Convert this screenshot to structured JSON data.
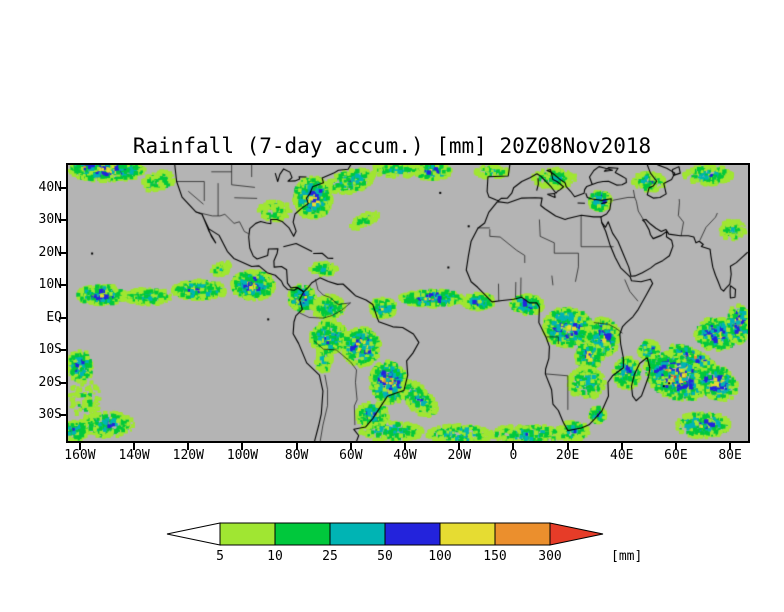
{
  "title": "Rainfall (7-day accum.) [mm] 20Z08Nov2018",
  "map": {
    "background_color": "#b4b4b4",
    "lat_ticks": [
      {
        "label": "40N",
        "value": 40
      },
      {
        "label": "30N",
        "value": 30
      },
      {
        "label": "20N",
        "value": 20
      },
      {
        "label": "10N",
        "value": 10
      },
      {
        "label": "EQ",
        "value": 0
      },
      {
        "label": "10S",
        "value": -10
      },
      {
        "label": "20S",
        "value": -20
      },
      {
        "label": "30S",
        "value": -30
      }
    ],
    "lon_ticks": [
      {
        "label": "160W",
        "value": -160
      },
      {
        "label": "140W",
        "value": -140
      },
      {
        "label": "120W",
        "value": -120
      },
      {
        "label": "100W",
        "value": -100
      },
      {
        "label": "80W",
        "value": -80
      },
      {
        "label": "60W",
        "value": -60
      },
      {
        "label": "40W",
        "value": -40
      },
      {
        "label": "20W",
        "value": -20
      },
      {
        "label": "0",
        "value": 0
      },
      {
        "label": "20E",
        "value": 20
      },
      {
        "label": "40E",
        "value": 40
      },
      {
        "label": "60E",
        "value": 60
      },
      {
        "label": "80E",
        "value": 80
      }
    ]
  },
  "legend": {
    "unit": "[mm]",
    "thresholds": [
      "5",
      "10",
      "25",
      "50",
      "100",
      "150",
      "300"
    ],
    "palette": [
      "#ffffff",
      "#a0e632",
      "#00c83c",
      "#00b4b4",
      "#2323dc",
      "#e6dc32",
      "#eb8f2d",
      "#e63c28"
    ]
  },
  "chart_data": {
    "type": "heatmap",
    "title": "Rainfall (7-day accum.) [mm] 20Z08Nov2018",
    "variable": "7-day accumulated rainfall",
    "unit": "mm",
    "valid_time": "20Z08Nov2018",
    "lon_range": [
      -164,
      86
    ],
    "lat_range": [
      -38,
      47
    ],
    "color_levels": [
      5,
      10,
      25,
      50,
      100,
      150,
      300
    ],
    "rainfall_regions_format": "[lon_center, lat_center, rx_deg, ry_deg, rot_deg, max_intensity_level_1to7, points]",
    "rainfall_regions": [
      [
        -150,
        45.5,
        14,
        3.5,
        0,
        6,
        450
      ],
      [
        -158,
        46.5,
        5,
        2,
        0,
        7,
        150
      ],
      [
        -131,
        42,
        6,
        3,
        10,
        3,
        140
      ],
      [
        -152,
        7,
        9,
        3,
        0,
        6,
        380
      ],
      [
        -135,
        6.5,
        9,
        2.5,
        0,
        4,
        240
      ],
      [
        -116,
        8.5,
        10,
        3,
        0,
        5,
        300
      ],
      [
        -96,
        10,
        8,
        4.5,
        0,
        6,
        480
      ],
      [
        -78,
        6,
        5,
        4,
        0,
        6,
        300
      ],
      [
        -108,
        15,
        4,
        2,
        20,
        3,
        80
      ],
      [
        -74,
        37,
        7,
        6.5,
        0,
        6,
        550
      ],
      [
        -88,
        33,
        6,
        3,
        0,
        3,
        150
      ],
      [
        -60,
        42,
        9,
        3.5,
        10,
        4,
        240
      ],
      [
        -30,
        45,
        7,
        2.5,
        0,
        5,
        200
      ],
      [
        -43,
        45.5,
        10,
        2.2,
        0,
        3,
        170
      ],
      [
        -55,
        30,
        6,
        2,
        20,
        2,
        90
      ],
      [
        -30,
        6,
        12,
        2.5,
        0,
        6,
        430
      ],
      [
        -13,
        5,
        6,
        2.5,
        0,
        5,
        200
      ],
      [
        -48,
        3,
        5,
        3,
        0,
        5,
        200
      ],
      [
        -68,
        3,
        6,
        4,
        0,
        4,
        240
      ],
      [
        -68,
        -6,
        7,
        5,
        0,
        5,
        380
      ],
      [
        -56,
        -9,
        7,
        6,
        0,
        6,
        430
      ],
      [
        -46,
        -20,
        7,
        6.5,
        -20,
        7,
        560
      ],
      [
        -52,
        -30,
        6,
        4,
        0,
        5,
        280
      ],
      [
        -70,
        -13,
        3,
        4,
        0,
        3,
        110
      ],
      [
        -35,
        -25,
        8,
        4,
        -35,
        4,
        240
      ],
      [
        -45,
        -35,
        12,
        3,
        0,
        4,
        240
      ],
      [
        -20,
        -36,
        12,
        3,
        0,
        4,
        240
      ],
      [
        5,
        -36,
        14,
        3,
        0,
        4,
        270
      ],
      [
        -150,
        -33,
        10,
        4,
        0,
        4,
        240
      ],
      [
        -160,
        -15,
        5,
        5,
        0,
        5,
        190
      ],
      [
        -158,
        -25,
        6,
        6,
        0,
        2,
        110
      ],
      [
        -162,
        -35,
        5,
        3,
        0,
        5,
        140
      ],
      [
        20,
        -3,
        9,
        6,
        0,
        6,
        600
      ],
      [
        5,
        4,
        6,
        3,
        0,
        5,
        240
      ],
      [
        33,
        -6,
        6,
        6,
        0,
        6,
        380
      ],
      [
        28,
        -12,
        5,
        4,
        0,
        6,
        280
      ],
      [
        27,
        -20,
        7,
        5,
        0,
        4,
        280
      ],
      [
        31,
        -30,
        3,
        2.5,
        0,
        5,
        120
      ],
      [
        22,
        -35,
        6,
        3,
        0,
        4,
        170
      ],
      [
        42,
        -17,
        5,
        5,
        0,
        5,
        240
      ],
      [
        50,
        -10,
        4,
        3,
        0,
        5,
        150
      ],
      [
        60,
        -18,
        12,
        7,
        -15,
        7,
        750
      ],
      [
        75,
        -20,
        8,
        5,
        -20,
        6,
        340
      ],
      [
        66,
        -12,
        9,
        2.2,
        -20,
        7,
        280
      ],
      [
        75,
        -5,
        8,
        5,
        0,
        6,
        430
      ],
      [
        83,
        -2,
        4,
        6,
        0,
        7,
        280
      ],
      [
        70,
        -33,
        10,
        4,
        0,
        5,
        280
      ],
      [
        32,
        36,
        4,
        3,
        0,
        6,
        240
      ],
      [
        15,
        43,
        8,
        3,
        0,
        3,
        170
      ],
      [
        -8,
        45,
        6,
        2,
        0,
        3,
        110
      ],
      [
        50,
        42,
        6,
        3,
        0,
        4,
        150
      ],
      [
        72,
        44,
        9,
        3,
        0,
        4,
        210
      ],
      [
        81,
        27,
        5,
        3,
        0,
        3,
        110
      ],
      [
        -70,
        15,
        5,
        2,
        0,
        3,
        100
      ]
    ]
  }
}
